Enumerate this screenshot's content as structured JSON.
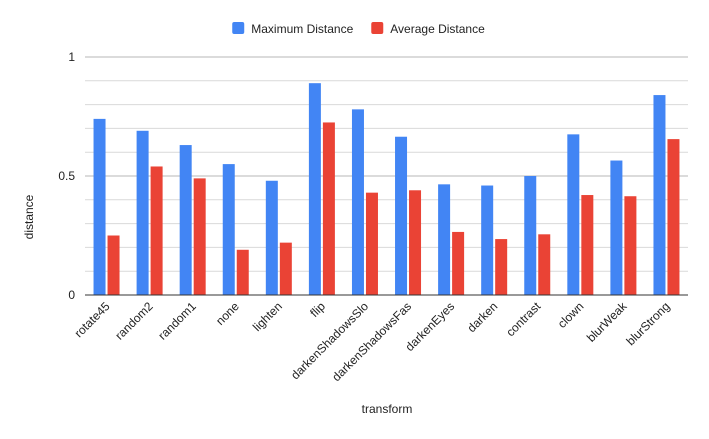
{
  "chart_data": {
    "type": "bar",
    "title": "",
    "xlabel": "transform",
    "ylabel": "distance",
    "ylim": [
      0,
      1
    ],
    "yticks": [
      0,
      0.5,
      1
    ],
    "ytick_labels": [
      "0",
      "0.5",
      "1"
    ],
    "grid": true,
    "legend_position": "top-center",
    "categories": [
      "rotate45",
      "random2",
      "random1",
      "none",
      "lighten",
      "flip",
      "darkenShadowsSlo",
      "darkenShadowsFas",
      "darkenEyes",
      "darken",
      "contrast",
      "clown",
      "blurWeak",
      "blurStrong"
    ],
    "series": [
      {
        "name": "Maximum Distance",
        "color": "#4285f4",
        "values": [
          0.74,
          0.69,
          0.63,
          0.55,
          0.48,
          0.89,
          0.78,
          0.665,
          0.465,
          0.46,
          0.5,
          0.675,
          0.565,
          0.84
        ]
      },
      {
        "name": "Average Distance",
        "color": "#ea4335",
        "values": [
          0.25,
          0.54,
          0.49,
          0.19,
          0.22,
          0.725,
          0.43,
          0.44,
          0.265,
          0.235,
          0.255,
          0.42,
          0.415,
          0.655
        ]
      }
    ]
  }
}
